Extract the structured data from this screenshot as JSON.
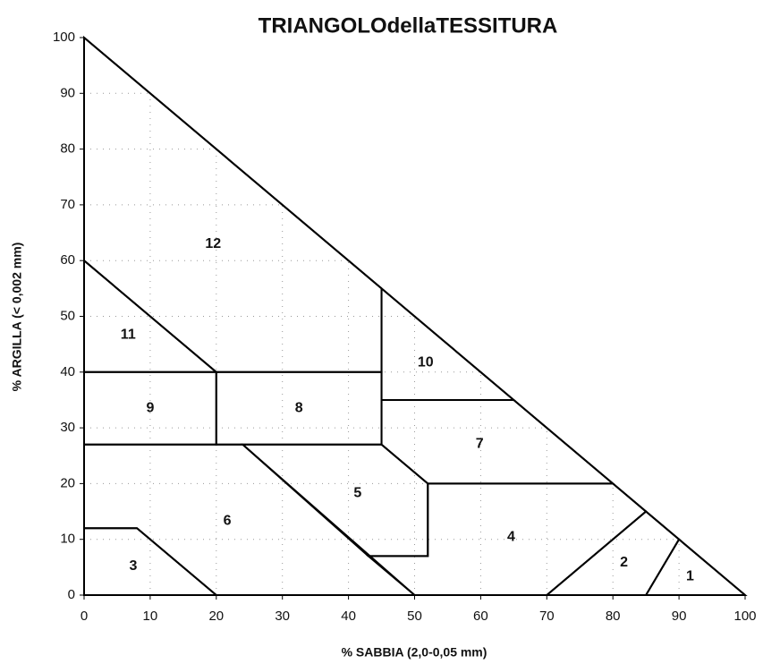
{
  "chart_data": {
    "type": "region",
    "title": "TRIANGOLOdellaTESSITURA",
    "x_label": "% SABBIA (2,0-0,05 mm)",
    "y_label": "% ARGILLA (< 0,002 mm)",
    "xlim": [
      0,
      100
    ],
    "ylim": [
      0,
      100
    ],
    "xticks": [
      0,
      10,
      20,
      30,
      40,
      50,
      60,
      70,
      80,
      90,
      100
    ],
    "yticks": [
      0,
      10,
      20,
      30,
      40,
      50,
      60,
      70,
      80,
      90,
      100
    ],
    "grid": true,
    "color": "#000000",
    "regions": [
      {
        "label": "1",
        "x": [
          85,
          90,
          100
        ],
        "y": [
          0,
          10,
          0
        ]
      },
      {
        "label": "2",
        "x": [
          70,
          85,
          90,
          85
        ],
        "y": [
          0,
          15,
          10,
          0
        ]
      },
      {
        "label": "3",
        "x": [
          0,
          0,
          8,
          20
        ],
        "y": [
          0,
          12,
          12,
          0
        ]
      },
      {
        "label": "4",
        "x": [
          52,
          80,
          85,
          70,
          50,
          43,
          52
        ],
        "y": [
          20,
          20,
          15,
          0,
          0,
          7,
          7
        ]
      },
      {
        "label": "5",
        "x": [
          24,
          45,
          52,
          52,
          43
        ],
        "y": [
          27,
          27,
          20,
          7,
          7
        ]
      },
      {
        "label": "6",
        "x": [
          0,
          0,
          24,
          50,
          20,
          8
        ],
        "y": [
          12,
          27,
          27,
          0,
          0,
          12
        ]
      },
      {
        "label": "7",
        "x": [
          45,
          45,
          65,
          80,
          52
        ],
        "y": [
          27,
          35,
          35,
          20,
          20
        ]
      },
      {
        "label": "8",
        "x": [
          20,
          20,
          45,
          45
        ],
        "y": [
          27,
          40,
          40,
          27
        ]
      },
      {
        "label": "9",
        "x": [
          0,
          0,
          20,
          20
        ],
        "y": [
          27,
          40,
          40,
          27
        ]
      },
      {
        "label": "10",
        "x": [
          45,
          45,
          65
        ],
        "y": [
          35,
          55,
          35
        ]
      },
      {
        "label": "11",
        "x": [
          0,
          0,
          20
        ],
        "y": [
          40,
          60,
          40
        ]
      },
      {
        "label": "12",
        "x": [
          0,
          0,
          45,
          45,
          20
        ],
        "y": [
          60,
          100,
          55,
          40,
          40
        ]
      }
    ]
  }
}
